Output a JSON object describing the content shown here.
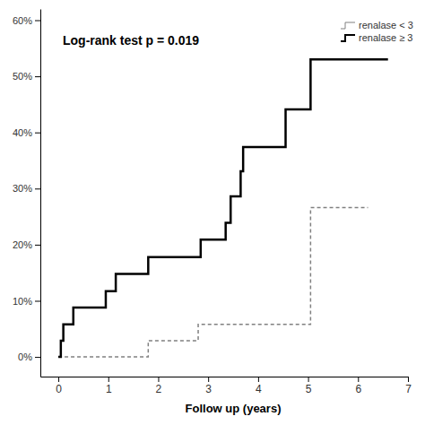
{
  "chart_data": {
    "type": "step",
    "annotation": "Log-rank test p = 0.019",
    "x_label": "Follow up (years)",
    "xlim": [
      -0.36,
      7
    ],
    "xticks": [
      0,
      1,
      2,
      3,
      4,
      5,
      6,
      7
    ],
    "ylim": [
      -3.5,
      62
    ],
    "yticks": [
      {
        "value": 0,
        "label": "0%"
      },
      {
        "value": 10,
        "label": "10%"
      },
      {
        "value": 20,
        "label": "20%"
      },
      {
        "value": 30,
        "label": "30%"
      },
      {
        "value": 40,
        "label": "40%"
      },
      {
        "value": 50,
        "label": "50%"
      },
      {
        "value": 60,
        "label": "60%"
      }
    ],
    "legend": "top-right",
    "grid": false,
    "series": [
      {
        "name": "renalase < 3",
        "color": "#808080",
        "line_style": "dashed",
        "x": [
          0,
          1.8,
          2.8,
          5.05,
          6.2
        ],
        "values": [
          0,
          2.9,
          5.8,
          26.6,
          26.6
        ]
      },
      {
        "name": "renalase ≥ 3",
        "color": "#000000",
        "line_style": "solid",
        "x": [
          0,
          0.05,
          0.1,
          0.3,
          0.95,
          1.15,
          1.8,
          2.85,
          3.35,
          3.45,
          3.65,
          3.7,
          4.55,
          5.05,
          6.6
        ],
        "values": [
          0,
          2.9,
          5.8,
          8.8,
          11.7,
          14.8,
          17.8,
          20.9,
          23.9,
          28.6,
          33.1,
          37.4,
          44.1,
          53,
          53
        ]
      }
    ]
  }
}
